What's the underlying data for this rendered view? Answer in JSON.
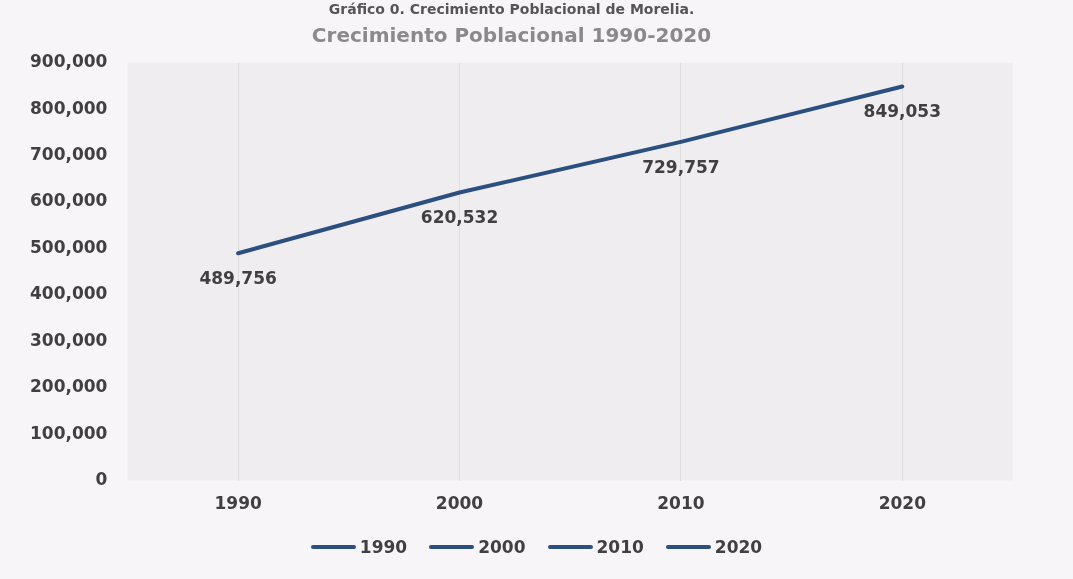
{
  "chart_data": {
    "type": "line",
    "title": "Gráfico 0. Crecimiento Poblacional de Morelia.",
    "subtitle": "Crecimiento Poblacional 1990-2020",
    "categories": [
      "1990",
      "2000",
      "2010",
      "2020"
    ],
    "values": [
      489756,
      620532,
      729757,
      849053
    ],
    "value_labels": [
      "489,756",
      "620,532",
      "729,757",
      "849,053"
    ],
    "color": "#2b4f7e",
    "colors": [
      "#2b4f7e",
      "#2b4f7e",
      "#2b4f7e",
      "#2b4f7e"
    ],
    "ylim": [
      0,
      900000
    ],
    "yticks": [
      0,
      {
        "value": 100000,
        "label": "100,000"
      },
      {
        "value": 200000,
        "label": "200,000"
      },
      {
        "value": 300000,
        "label": "300,000"
      },
      {
        "value": 400000,
        "label": "400,000"
      },
      {
        "value": 500000,
        "label": "500,000"
      },
      {
        "value": 600000,
        "label": "600,000"
      },
      {
        "value": 700000,
        "label": "700,000"
      },
      {
        "value": 800000,
        "label": "800,000"
      },
      {
        "value": 900000,
        "label": "900,000"
      }
    ],
    "grid": "x",
    "marker": "none"
  }
}
